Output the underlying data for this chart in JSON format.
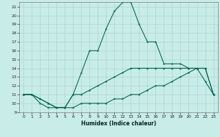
{
  "xlabel": "Humidex (Indice chaleur)",
  "bg_color": "#c8ece8",
  "grid_color": "#aad4cc",
  "line_color": "#006655",
  "xlim": [
    -0.5,
    23.5
  ],
  "ylim": [
    9,
    21.5
  ],
  "xticks": [
    0,
    1,
    2,
    3,
    4,
    5,
    6,
    7,
    8,
    9,
    10,
    11,
    12,
    13,
    14,
    15,
    16,
    17,
    18,
    19,
    20,
    21,
    22,
    23
  ],
  "yticks": [
    9,
    10,
    11,
    12,
    13,
    14,
    15,
    16,
    17,
    18,
    19,
    20,
    21
  ],
  "line_upper_x": [
    0,
    1,
    2,
    3,
    4,
    5,
    6,
    7,
    8,
    9,
    10,
    11,
    12,
    13,
    14,
    15,
    16,
    17,
    18,
    19,
    20,
    21,
    22,
    23
  ],
  "line_upper_y": [
    11,
    11,
    10.5,
    10,
    9.5,
    9.5,
    11,
    13.5,
    16,
    16,
    18.5,
    20.5,
    21.5,
    21.5,
    19,
    17,
    17,
    14.5,
    14.5,
    14.5,
    14,
    14,
    12.5,
    11
  ],
  "line_mid_x": [
    0,
    1,
    2,
    3,
    4,
    5,
    6,
    7,
    8,
    9,
    10,
    11,
    12,
    13,
    14,
    15,
    16,
    17,
    18,
    19,
    20,
    21,
    22,
    23
  ],
  "line_mid_y": [
    11,
    11,
    10.5,
    10,
    9.5,
    9.5,
    11,
    11,
    11.5,
    12,
    12.5,
    13,
    13.5,
    14,
    14,
    14,
    14,
    14,
    14,
    14,
    14,
    14,
    14,
    11
  ],
  "line_low_x": [
    0,
    1,
    2,
    3,
    4,
    5,
    6,
    7,
    8,
    9,
    10,
    11,
    12,
    13,
    14,
    15,
    16,
    17,
    18,
    19,
    20,
    21,
    22,
    23
  ],
  "line_low_y": [
    11,
    11,
    10,
    9.5,
    9.5,
    9.5,
    9.5,
    10,
    10,
    10,
    10,
    10.5,
    10.5,
    11,
    11,
    11.5,
    12,
    12,
    12.5,
    13,
    13.5,
    14,
    14,
    11
  ]
}
